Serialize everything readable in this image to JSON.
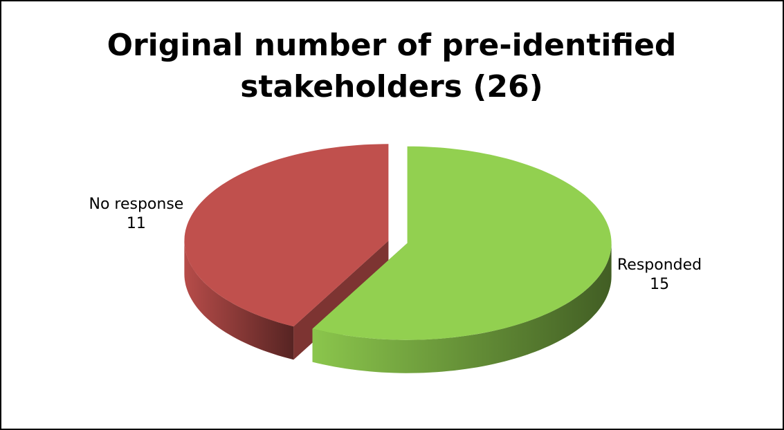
{
  "chart_data": {
    "type": "pie",
    "title": "Original number of pre-identified stakeholders (26)",
    "categories": [
      "Responded",
      "No response"
    ],
    "values": [
      15,
      11
    ],
    "colors": [
      "#92d050",
      "#c0504d"
    ]
  }
}
